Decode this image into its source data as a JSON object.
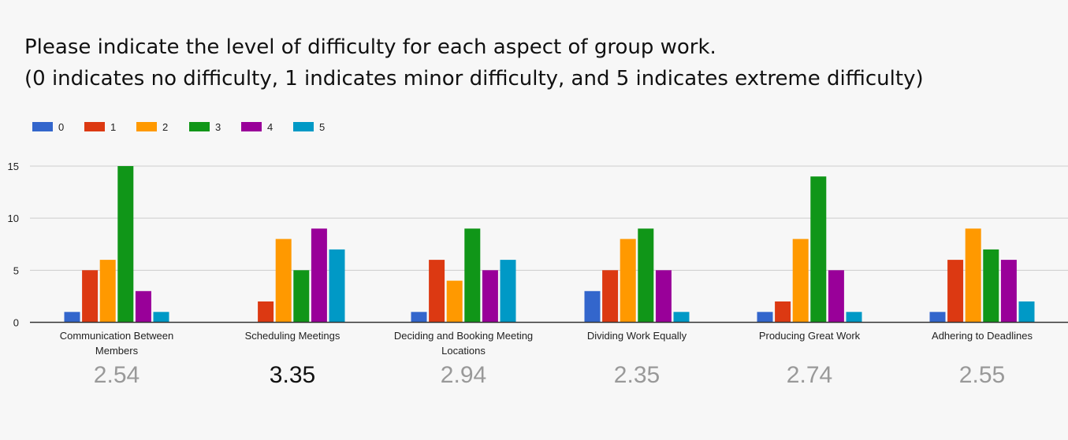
{
  "title_lines": [
    "Please indicate the level of difficulty for each aspect of group work.",
    "(0 indicates no difficulty, 1 indicates minor difficulty, and 5 indicates extreme difficulty)"
  ],
  "chart_data": {
    "type": "bar",
    "title": "Please indicate the level of difficulty for each aspect of group work. (0 indicates no difficulty, 1 indicates minor difficulty, and 5 indicates extreme difficulty)",
    "xlabel": "",
    "ylabel": "",
    "ylim": [
      0,
      15
    ],
    "yticks": [
      0,
      5,
      10,
      15
    ],
    "grid": true,
    "legend_position": "top-left",
    "categories": [
      [
        "Communication Between",
        "Members"
      ],
      [
        "Scheduling Meetings"
      ],
      [
        "Deciding and Booking Meeting",
        "Locations"
      ],
      [
        "Dividing Work Equally"
      ],
      [
        "Producing Great Work"
      ],
      [
        "Adhering to Deadlines"
      ]
    ],
    "series": [
      {
        "name": "0",
        "color": "#3366cc",
        "values": [
          1,
          0,
          1,
          3,
          1,
          1
        ]
      },
      {
        "name": "1",
        "color": "#dc3912",
        "values": [
          5,
          2,
          6,
          5,
          2,
          6
        ]
      },
      {
        "name": "2",
        "color": "#ff9900",
        "values": [
          6,
          8,
          4,
          8,
          8,
          9
        ]
      },
      {
        "name": "3",
        "color": "#109618",
        "values": [
          15,
          5,
          9,
          9,
          14,
          7
        ]
      },
      {
        "name": "4",
        "color": "#990099",
        "values": [
          3,
          9,
          5,
          5,
          5,
          6
        ]
      },
      {
        "name": "5",
        "color": "#0099c6",
        "values": [
          1,
          7,
          6,
          1,
          1,
          2
        ]
      }
    ],
    "averages": [
      {
        "label": "2.54",
        "highlight": false
      },
      {
        "label": "3.35",
        "highlight": true
      },
      {
        "label": "2.94",
        "highlight": false
      },
      {
        "label": "2.35",
        "highlight": false
      },
      {
        "label": "2.74",
        "highlight": false
      },
      {
        "label": "2.55",
        "highlight": false
      }
    ],
    "colors": {
      "average_text": "#999999",
      "average_highlight": "#111111",
      "grid": "#cccccc",
      "baseline": "#333333",
      "tick_text": "#222222"
    }
  }
}
